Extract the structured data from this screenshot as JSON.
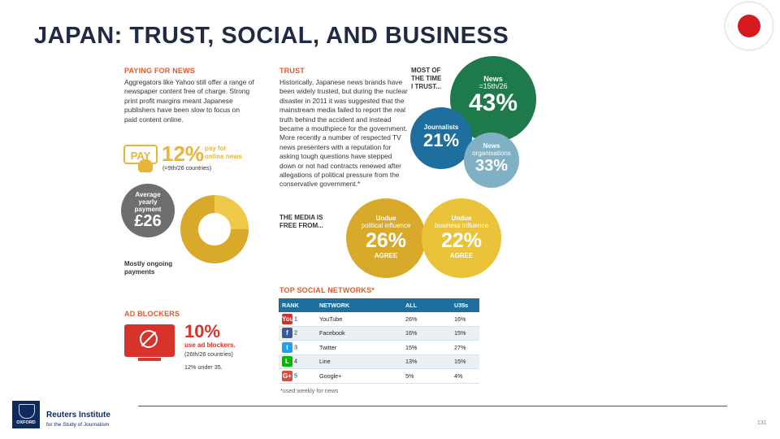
{
  "slide": {
    "title": "JAPAN: TRUST, SOCIAL, AND BUSINESS",
    "page_number": "131"
  },
  "paying": {
    "heading": "PAYING FOR NEWS",
    "text": "Aggregators like Yahoo still offer a range of newspaper content free of charge. Strong print profit margins meant Japanese publishers have been slow to focus on paid content online.",
    "pay_label": "PAY",
    "pay_percent": "12%",
    "pay_caption_1": "pay for",
    "pay_caption_2": "online news",
    "pay_rank": "(=9th/26 countries)",
    "avg_label_1": "Average",
    "avg_label_2": "yearly",
    "avg_label_3": "payment",
    "avg_value": "£26",
    "mostly_1": "Mostly ongoing",
    "mostly_2": "payments",
    "donut_ongoing_share": 0.75
  },
  "trust": {
    "heading": "TRUST",
    "text": "Historically, Japanese news brands have been widely trusted, but during the nuclear disaster in 2011 it was suggested that the mainstream media failed to report the real truth behind the accident and instead became a mouthpiece for the government. More recently a number of respected TV news presenters with a reputation for asking tough questions have stepped down or not had contracts renewed after allegations of political pressure from the conservative government.*",
    "most_1": "MOST OF",
    "most_2": "THE TIME",
    "most_3": "I TRUST...",
    "news_title": "News",
    "news_rank": "=15th/26",
    "news_value": "43%",
    "journalists_title": "Journalists",
    "journalists_value": "21%",
    "orgs_title_1": "News",
    "orgs_title_2": "organisations",
    "orgs_value": "33%",
    "free_1": "THE MEDIA IS",
    "free_2": "FREE FROM...",
    "political_1": "Undue",
    "political_2": "political influence",
    "political_value": "26%",
    "political_agree": "AGREE",
    "business_1": "Undue",
    "business_2": "business influence",
    "business_value": "22%",
    "business_agree": "AGREE"
  },
  "adblock": {
    "heading": "AD BLOCKERS",
    "value": "10%",
    "line1": "use ad blockers.",
    "line2": "(26th/26 countries)",
    "line3": "12% under 35."
  },
  "social": {
    "heading": "TOP SOCIAL NETWORKS*",
    "columns": [
      "RANK",
      "NETWORK",
      "ALL",
      "U35s"
    ],
    "rows": [
      {
        "icon": "You",
        "color": "#d32f2f",
        "rank": "1",
        "network": "YouTube",
        "all": "26%",
        "u35": "16%"
      },
      {
        "icon": "f",
        "color": "#3b5998",
        "rank": "2",
        "network": "Facebook",
        "all": "16%",
        "u35": "15%"
      },
      {
        "icon": "t",
        "color": "#1da1f2",
        "rank": "3",
        "network": "Twitter",
        "all": "15%",
        "u35": "27%"
      },
      {
        "icon": "L",
        "color": "#00b900",
        "rank": "4",
        "network": "Line",
        "all": "13%",
        "u35": "15%"
      },
      {
        "icon": "G+",
        "color": "#dd4b39",
        "rank": "5",
        "network": "Google+",
        "all": "5%",
        "u35": "4%"
      }
    ],
    "footnote": "*used weekly for news"
  },
  "footer": {
    "oxford": "OXFORD",
    "reuters_1": "Reuters Institute",
    "reuters_2": "for the Study of Journalism"
  }
}
